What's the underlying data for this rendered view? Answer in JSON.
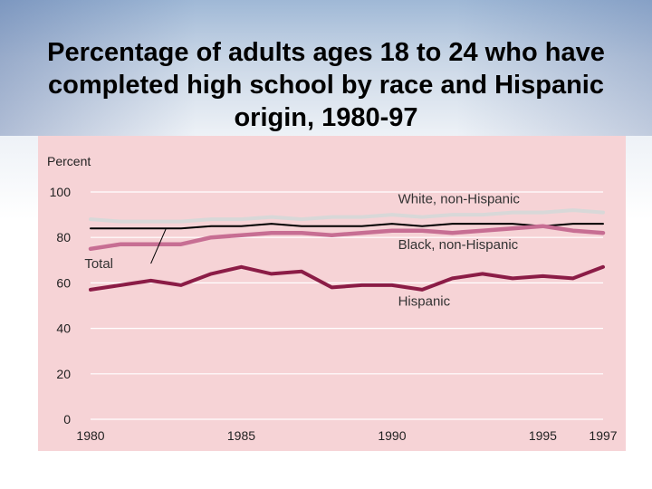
{
  "slide": {
    "title": "Percentage of adults ages 18 to 24 who have completed high school by race and Hispanic origin, 1980-97"
  },
  "chart_data": {
    "type": "line",
    "title": "Percentage of adults ages 18 to 24 who have completed high school by race and Hispanic origin, 1980-97",
    "ylabel": "Percent",
    "xlabel": "",
    "ylim": [
      0,
      100
    ],
    "xlim": [
      1980,
      1997
    ],
    "yticks": [
      0,
      20,
      40,
      60,
      80,
      100
    ],
    "xticks": [
      1980,
      1985,
      1990,
      1995,
      1997
    ],
    "grid": "horizontal",
    "x": [
      1980,
      1981,
      1982,
      1983,
      1984,
      1985,
      1986,
      1987,
      1988,
      1989,
      1990,
      1991,
      1992,
      1993,
      1994,
      1995,
      1996,
      1997
    ],
    "series": [
      {
        "name": "White, non-Hispanic",
        "color": "#d8d8d8",
        "values": [
          88,
          87,
          87,
          87,
          88,
          88,
          89,
          88,
          89,
          89,
          90,
          89,
          90,
          90,
          91,
          91,
          92,
          91
        ]
      },
      {
        "name": "Total",
        "color": "#000000",
        "values": [
          84,
          84,
          84,
          84,
          85,
          85,
          86,
          85,
          85,
          85,
          86,
          85,
          86,
          86,
          86,
          85,
          86,
          86
        ]
      },
      {
        "name": "Black, non-Hispanic",
        "color": "#c76e93",
        "values": [
          75,
          77,
          77,
          77,
          80,
          81,
          82,
          82,
          81,
          82,
          83,
          83,
          82,
          83,
          84,
          85,
          83,
          82
        ]
      },
      {
        "name": "Hispanic",
        "color": "#8b1c46",
        "values": [
          57,
          59,
          61,
          59,
          64,
          67,
          64,
          65,
          58,
          59,
          59,
          57,
          62,
          64,
          62,
          63,
          62,
          67
        ]
      }
    ]
  }
}
